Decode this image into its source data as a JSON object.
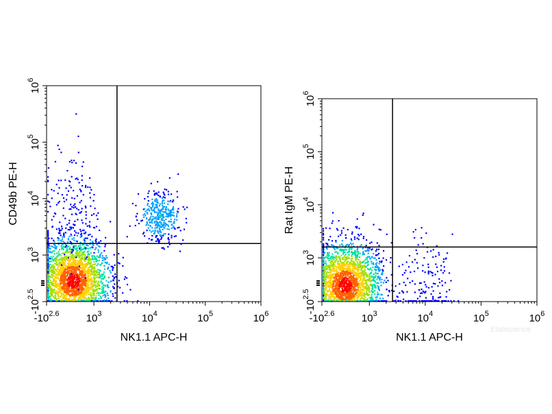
{
  "chart_data": [
    {
      "type": "scatter",
      "style": "density-colored flow cytometry dot plot",
      "xlabel": "NK1.1 APC-H",
      "ylabel": "CD49b PE-H",
      "x_scale": "biexponential",
      "y_scale": "biexponential",
      "x_ticks": [
        {
          "base": "-10",
          "exp": "2.6",
          "value": -398
        },
        {
          "base": "10",
          "exp": "3",
          "value": 1000
        },
        {
          "base": "10",
          "exp": "4",
          "value": 10000
        },
        {
          "base": "10",
          "exp": "5",
          "value": 100000
        },
        {
          "base": "10",
          "exp": "6",
          "value": 1000000
        }
      ],
      "y_ticks": [
        {
          "base": "-10",
          "exp": "2.5",
          "value": -316
        },
        {
          "base": "10",
          "exp": "3",
          "value": 1000
        },
        {
          "base": "10",
          "exp": "4",
          "value": 10000
        },
        {
          "base": "10",
          "exp": "5",
          "value": 100000
        },
        {
          "base": "10",
          "exp": "6",
          "value": 1000000
        }
      ],
      "xlim": [
        -398,
        1000000
      ],
      "ylim": [
        -316,
        1000000
      ],
      "quadrant_gate": {
        "x": 2600,
        "y": 1600
      },
      "populations": [
        {
          "center_x": 400,
          "center_y": 300,
          "density": "high"
        },
        {
          "center_x": 15000,
          "center_y": 5000,
          "density": "medium"
        },
        {
          "center_x": 400,
          "center_y": 7000,
          "density": "low"
        }
      ],
      "grid": false,
      "density_colors": [
        "#0000ff",
        "#00a0ff",
        "#00e0a0",
        "#a0e000",
        "#ffd000",
        "#ff6000",
        "#ff0000"
      ]
    },
    {
      "type": "scatter",
      "style": "density-colored flow cytometry dot plot",
      "xlabel": "NK1.1 APC-H",
      "ylabel": "Rat IgM PE-H",
      "x_scale": "biexponential",
      "y_scale": "biexponential",
      "x_ticks": [
        {
          "base": "-10",
          "exp": "2.6",
          "value": -398
        },
        {
          "base": "10",
          "exp": "3",
          "value": 1000
        },
        {
          "base": "10",
          "exp": "4",
          "value": 10000
        },
        {
          "base": "10",
          "exp": "5",
          "value": 100000
        },
        {
          "base": "10",
          "exp": "6",
          "value": 1000000
        }
      ],
      "y_ticks": [
        {
          "base": "-10",
          "exp": "2.5",
          "value": -316
        },
        {
          "base": "10",
          "exp": "3",
          "value": 1000
        },
        {
          "base": "10",
          "exp": "4",
          "value": 10000
        },
        {
          "base": "10",
          "exp": "5",
          "value": 100000
        },
        {
          "base": "10",
          "exp": "6",
          "value": 1000000
        }
      ],
      "xlim": [
        -398,
        1000000
      ],
      "ylim": [
        -316,
        1000000
      ],
      "quadrant_gate": {
        "x": 2600,
        "y": 1600
      },
      "populations": [
        {
          "center_x": 300,
          "center_y": 200,
          "density": "high"
        },
        {
          "center_x": 10000,
          "center_y": 200,
          "density": "low"
        }
      ],
      "grid": false,
      "density_colors": [
        "#0000ff",
        "#00a0ff",
        "#00e0a0",
        "#a0e000",
        "#ffd000",
        "#ff6000",
        "#ff0000"
      ]
    }
  ],
  "watermark": "Elabscience"
}
